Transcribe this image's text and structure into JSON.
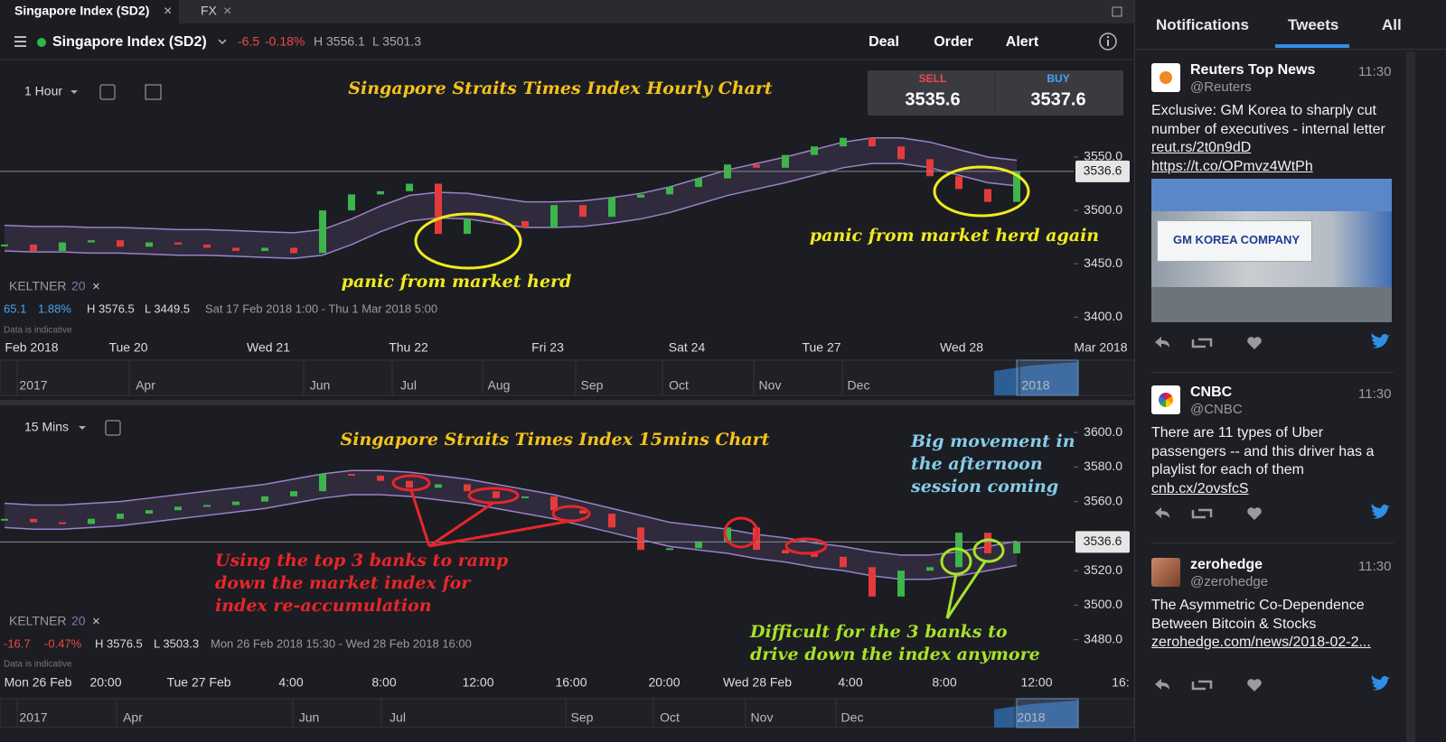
{
  "tabs": [
    "Singapore Index (SD2)",
    "FX"
  ],
  "header": {
    "instrument": "Singapore Index (SD2)",
    "change": "-6.5",
    "change_pct": "-0.18%",
    "high": "H 3556.1",
    "low": "L 3501.3",
    "actions": [
      "Deal",
      "Order",
      "Alert"
    ]
  },
  "quote": {
    "sell_label": "SELL",
    "sell": "3535.6",
    "buy_label": "BUY",
    "buy": "3537.6"
  },
  "charts": [
    {
      "interval": "1 Hour",
      "title": "Singapore Straits Times Index Hourly Chart",
      "indicator": "KELTNER",
      "indicator_period": "20",
      "stats": [
        "65.1",
        "1.88%",
        "H 3576.5",
        "L 3449.5",
        "Sat 17 Feb 2018 1:00 - Thu 1 Mar 2018 5:00"
      ],
      "note": "Data is indicative",
      "annotations": [
        [
          "panic from market herd"
        ],
        [
          "panic from market herd again"
        ]
      ],
      "xlabels": [
        "Feb 2018",
        "Tue 20",
        "Wed 21",
        "Thu 22",
        "Fri 23",
        "Sat 24",
        "Tue 27",
        "Wed 28",
        "Mar 2018"
      ],
      "nav_labels": [
        "2017",
        "Apr",
        "Jun",
        "Jul",
        "Aug",
        "Sep",
        "Oct",
        "Nov",
        "Dec",
        "2018"
      ],
      "ylim": [
        3363,
        3638
      ],
      "yticks": [
        {
          "value": 3550,
          "label": "3550.0"
        },
        {
          "value": 3500,
          "label": "3500.0"
        },
        {
          "value": 3450,
          "label": "3450.0"
        },
        {
          "value": 3400,
          "label": "3400.0"
        }
      ],
      "last_price": 3536.6,
      "closes": [
        3468,
        3462,
        3470,
        3472,
        3466,
        3470,
        3468,
        3465,
        3462,
        3465,
        3460,
        3500,
        3515,
        3518,
        3525,
        3478,
        3492,
        3490,
        3484,
        3505,
        3494,
        3512,
        3515,
        3522,
        3530,
        3543,
        3540,
        3552,
        3560,
        3568,
        3560,
        3548,
        3532,
        3520,
        3508,
        3536.6
      ],
      "upper": [
        3486,
        3485,
        3485,
        3484,
        3484,
        3483,
        3482,
        3482,
        3481,
        3480,
        3479,
        3482,
        3492,
        3504,
        3514,
        3517,
        3516,
        3512,
        3508,
        3508,
        3509,
        3512,
        3516,
        3522,
        3530,
        3538,
        3544,
        3550,
        3557,
        3564,
        3568,
        3568,
        3564,
        3557,
        3550,
        3547
      ],
      "lower": [
        3462,
        3461,
        3461,
        3460,
        3460,
        3459,
        3458,
        3458,
        3457,
        3456,
        3455,
        3458,
        3468,
        3480,
        3490,
        3493,
        3492,
        3488,
        3484,
        3484,
        3485,
        3488,
        3492,
        3498,
        3506,
        3514,
        3520,
        3526,
        3533,
        3540,
        3544,
        3544,
        3540,
        3533,
        3526,
        3523
      ]
    },
    {
      "interval": "15 Mins",
      "title": "Singapore Straits Times Index 15mins Chart",
      "indicator": "KELTNER",
      "indicator_period": "20",
      "stats": [
        "-16.7",
        "-0.47%",
        "H 3576.5",
        "L 3503.3",
        "Mon 26 Feb 2018 15:30 - Wed 28 Feb 2018 16:00"
      ],
      "note": "Data is indicative",
      "annotations": [
        [
          "Big movement in",
          "the afternoon",
          "session coming"
        ],
        [
          "Using the top 3 banks to ramp",
          "down the market index for",
          "index re-accumulation"
        ],
        [
          "Difficult for the 3 banks to",
          "drive down the index anymore"
        ]
      ],
      "xlabels": [
        "Mon 26 Feb",
        "20:00",
        "Tue 27 Feb",
        "4:00",
        "8:00",
        "12:00",
        "16:00",
        "20:00",
        "Wed 28 Feb",
        "4:00",
        "8:00",
        "12:00",
        "16:"
      ],
      "nav_labels": [
        "2017",
        "Apr",
        "Jun",
        "Jul",
        "Sep",
        "Oct",
        "Nov",
        "Dec",
        "2018"
      ],
      "ylim": [
        3461,
        3610
      ],
      "yticks": [
        {
          "value": 3600,
          "label": "3600.0"
        },
        {
          "value": 3580,
          "label": "3580.0"
        },
        {
          "value": 3560,
          "label": "3560.0"
        },
        {
          "value": 3520,
          "label": "3520.0"
        },
        {
          "value": 3500,
          "label": "3500.0"
        },
        {
          "value": 3480,
          "label": "3480.0"
        }
      ],
      "last_price": 3536.6,
      "closes": [
        3550,
        3548,
        3547,
        3550,
        3553,
        3555,
        3557,
        3558,
        3560,
        3563,
        3566,
        3576,
        3575,
        3572,
        3568,
        3570,
        3566,
        3562,
        3563,
        3555,
        3553,
        3545,
        3532,
        3533,
        3537,
        3545,
        3532,
        3530,
        3528,
        3522,
        3505,
        3520,
        3522,
        3542,
        3530,
        3536.6
      ],
      "upper": [
        3559,
        3558,
        3558,
        3559,
        3560,
        3562,
        3564,
        3566,
        3568,
        3570,
        3573,
        3576,
        3578,
        3578,
        3577,
        3575,
        3573,
        3570,
        3567,
        3564,
        3560,
        3556,
        3552,
        3548,
        3546,
        3544,
        3541,
        3539,
        3536,
        3534,
        3531,
        3529,
        3529,
        3531,
        3534,
        3537
      ],
      "lower": [
        3545,
        3544,
        3544,
        3545,
        3546,
        3548,
        3550,
        3552,
        3554,
        3556,
        3559,
        3562,
        3564,
        3564,
        3563,
        3561,
        3559,
        3556,
        3553,
        3550,
        3546,
        3542,
        3538,
        3534,
        3532,
        3530,
        3527,
        3525,
        3522,
        3520,
        3517,
        3515,
        3515,
        3517,
        3520,
        3523
      ]
    }
  ],
  "sidebar": {
    "tabs": [
      "Notifications",
      "Tweets",
      "All"
    ],
    "tweets": [
      {
        "name": "Reuters Top News",
        "handle": "@Reuters",
        "time": "11:30",
        "text": "Exclusive: GM Korea to sharply cut number of executives - internal letter",
        "links": [
          "reut.rs/2t0n9dD",
          "https://t.co/OPmvz4WtPh"
        ],
        "image_text": "GM KOREA COMPANY"
      },
      {
        "name": "CNBC",
        "handle": "@CNBC",
        "time": "11:30",
        "text": "There are 11 types of Uber passengers -- and this driver has a playlist for each of them",
        "links": [
          "cnb.cx/2ovsfcS"
        ]
      },
      {
        "name": "zerohedge",
        "handle": "@zerohedge",
        "time": "11:30",
        "text": "The Asymmetric Co-Dependence Between Bitcoin & Stocks",
        "links": [
          "zerohedge.com/news/2018-02-2..."
        ]
      }
    ]
  }
}
